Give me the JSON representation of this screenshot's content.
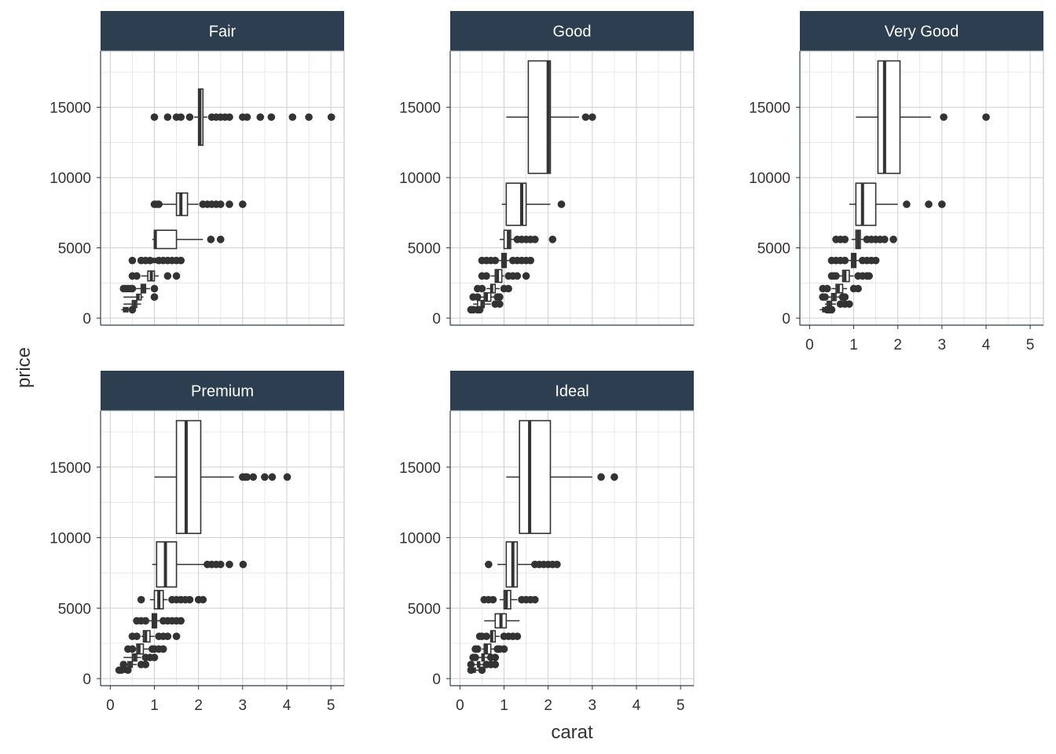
{
  "chart_data": {
    "type": "boxplot",
    "facet_by": "cut",
    "orientation": "horizontal boxes (grouped by price bins)",
    "xlabel": "carat",
    "ylabel": "price",
    "xlim": [
      0,
      5.3
    ],
    "ylim": [
      0,
      19000
    ],
    "x_ticks": [
      0,
      1,
      2,
      3,
      4,
      5
    ],
    "y_ticks": [
      0,
      5000,
      10000,
      15000
    ],
    "x_tick_labels": [
      "0",
      "1",
      "2",
      "3",
      "4",
      "5"
    ],
    "y_tick_labels": [
      "0",
      "5000",
      "10000",
      "15000"
    ],
    "grid": true,
    "colors": {
      "strip": "#2c3e50",
      "box": "#333333",
      "grid": "#d0d0d0",
      "panel_border": "#2c3e50"
    },
    "panels": [
      {
        "name": "Fair",
        "boxes": [
          {
            "y": 14300,
            "h": 4000,
            "whisker_low": 1.9,
            "q1": 2.0,
            "median": 2.03,
            "q3": 2.1,
            "whisker_high": 2.2,
            "outliers": [
              1.0,
              1.3,
              1.5,
              1.6,
              1.8,
              2.3,
              2.4,
              2.5,
              2.6,
              2.7,
              3.0,
              3.1,
              3.4,
              3.65,
              4.13,
              4.5,
              5.01
            ]
          },
          {
            "y": 8100,
            "h": 1600,
            "whisker_low": 1.0,
            "q1": 1.5,
            "median": 1.6,
            "q3": 1.75,
            "whisker_high": 2.0,
            "outliers": [
              1.0,
              1.05,
              1.1,
              2.1,
              2.2,
              2.3,
              2.4,
              2.5,
              2.7,
              3.0
            ]
          },
          {
            "y": 5600,
            "h": 1300,
            "whisker_low": 0.95,
            "q1": 1.0,
            "median": 1.02,
            "q3": 1.5,
            "whisker_high": 2.1,
            "outliers": [
              2.28,
              2.5
            ]
          },
          {
            "y": 4100,
            "h": 300,
            "whisker_low": 0.9,
            "q1": 0.95,
            "median": 1.0,
            "q3": 1.05,
            "whisker_high": 1.1,
            "outliers": [
              0.5,
              0.7,
              0.8,
              0.9,
              1.1,
              1.2,
              1.3,
              1.4,
              1.5,
              1.6
            ]
          },
          {
            "y": 3000,
            "h": 700,
            "whisker_low": 0.7,
            "q1": 0.85,
            "median": 0.93,
            "q3": 1.0,
            "whisker_high": 1.1,
            "outliers": [
              0.5,
              0.6,
              1.3,
              1.5
            ]
          },
          {
            "y": 2100,
            "h": 600,
            "whisker_low": 0.55,
            "q1": 0.7,
            "median": 0.75,
            "q3": 0.8,
            "whisker_high": 0.9,
            "outliers": [
              0.3,
              0.35,
              0.4,
              0.45,
              0.5,
              1.0
            ]
          },
          {
            "y": 1500,
            "h": 400,
            "whisker_low": 0.3,
            "q1": 0.6,
            "median": 0.63,
            "q3": 0.7,
            "whisker_high": 0.75,
            "outliers": [
              1.0
            ]
          },
          {
            "y": 1000,
            "h": 500,
            "whisker_low": 0.3,
            "q1": 0.5,
            "median": 0.55,
            "q3": 0.6,
            "whisker_high": 0.7,
            "outliers": []
          },
          {
            "y": 600,
            "h": 300,
            "whisker_low": 0.25,
            "q1": 0.3,
            "median": 0.35,
            "q3": 0.4,
            "whisker_high": 0.5,
            "outliers": [
              0.5
            ]
          }
        ]
      },
      {
        "name": "Good",
        "boxes": [
          {
            "y": 14300,
            "h": 8000,
            "whisker_low": 1.05,
            "q1": 1.55,
            "median": 2.0,
            "q3": 2.05,
            "whisker_high": 2.7,
            "outliers": [
              2.85,
              3.0
            ]
          },
          {
            "y": 8100,
            "h": 3000,
            "whisker_low": 0.95,
            "q1": 1.05,
            "median": 1.4,
            "q3": 1.5,
            "whisker_high": 2.05,
            "outliers": [
              2.3
            ]
          },
          {
            "y": 5600,
            "h": 1300,
            "whisker_low": 0.9,
            "q1": 1.0,
            "median": 1.1,
            "q3": 1.15,
            "whisker_high": 1.3,
            "outliers": [
              1.3,
              1.4,
              1.5,
              1.6,
              1.7,
              2.1
            ]
          },
          {
            "y": 4100,
            "h": 1000,
            "whisker_low": 0.85,
            "q1": 0.95,
            "median": 1.0,
            "q3": 1.05,
            "whisker_high": 1.15,
            "outliers": [
              0.5,
              0.6,
              0.7,
              0.8,
              1.2,
              1.3,
              1.4,
              1.5,
              1.6
            ]
          },
          {
            "y": 3000,
            "h": 900,
            "whisker_low": 0.7,
            "q1": 0.8,
            "median": 0.85,
            "q3": 0.95,
            "whisker_high": 1.0,
            "outliers": [
              0.5,
              0.6,
              1.1,
              1.2,
              1.3,
              1.5
            ]
          },
          {
            "y": 2100,
            "h": 600,
            "whisker_low": 0.6,
            "q1": 0.7,
            "median": 0.72,
            "q3": 0.8,
            "whisker_high": 0.9,
            "outliers": [
              0.4,
              0.5,
              1.0,
              1.1
            ]
          },
          {
            "y": 1500,
            "h": 600,
            "whisker_low": 0.35,
            "q1": 0.55,
            "median": 0.6,
            "q3": 0.7,
            "whisker_high": 0.8,
            "outliers": [
              0.3,
              0.4,
              0.85,
              0.9
            ]
          },
          {
            "y": 1000,
            "h": 500,
            "whisker_low": 0.3,
            "q1": 0.4,
            "median": 0.5,
            "q3": 0.55,
            "whisker_high": 0.7,
            "outliers": [
              0.8,
              0.9
            ]
          },
          {
            "y": 600,
            "h": 300,
            "whisker_low": 0.23,
            "q1": 0.3,
            "median": 0.32,
            "q3": 0.35,
            "whisker_high": 0.45,
            "outliers": [
              0.25,
              0.3,
              0.4,
              0.45
            ]
          }
        ]
      },
      {
        "name": "Very Good",
        "boxes": [
          {
            "y": 14300,
            "h": 8000,
            "whisker_low": 1.05,
            "q1": 1.55,
            "median": 1.7,
            "q3": 2.05,
            "whisker_high": 2.75,
            "outliers": [
              3.04,
              4.0
            ]
          },
          {
            "y": 8100,
            "h": 3000,
            "whisker_low": 0.9,
            "q1": 1.05,
            "median": 1.2,
            "q3": 1.5,
            "whisker_high": 2.0,
            "outliers": [
              2.2,
              2.7,
              3.0
            ]
          },
          {
            "y": 5600,
            "h": 1300,
            "whisker_low": 0.95,
            "q1": 1.05,
            "median": 1.1,
            "q3": 1.15,
            "whisker_high": 1.3,
            "outliers": [
              0.6,
              0.7,
              0.8,
              1.3,
              1.4,
              1.5,
              1.6,
              1.7,
              1.9
            ]
          },
          {
            "y": 4100,
            "h": 1000,
            "whisker_low": 0.85,
            "q1": 0.95,
            "median": 1.0,
            "q3": 1.05,
            "whisker_high": 1.15,
            "outliers": [
              0.5,
              0.6,
              0.7,
              0.8,
              1.2,
              1.3,
              1.4,
              1.5
            ]
          },
          {
            "y": 3000,
            "h": 800,
            "whisker_low": 0.65,
            "q1": 0.75,
            "median": 0.8,
            "q3": 0.9,
            "whisker_high": 1.0,
            "outliers": [
              0.5,
              0.55,
              0.6,
              1.1,
              1.2,
              1.3,
              1.35
            ]
          },
          {
            "y": 2100,
            "h": 600,
            "whisker_low": 0.5,
            "q1": 0.6,
            "median": 0.65,
            "q3": 0.75,
            "whisker_high": 0.85,
            "outliers": [
              0.3,
              0.4,
              1.0,
              1.1
            ]
          },
          {
            "y": 1500,
            "h": 500,
            "whisker_low": 0.4,
            "q1": 0.5,
            "median": 0.55,
            "q3": 0.6,
            "whisker_high": 0.7,
            "outliers": [
              0.3,
              0.35,
              0.75,
              0.8
            ]
          },
          {
            "y": 1000,
            "h": 400,
            "whisker_low": 0.35,
            "q1": 0.4,
            "median": 0.45,
            "q3": 0.5,
            "whisker_high": 0.6,
            "outliers": [
              0.7,
              0.8,
              0.9
            ]
          },
          {
            "y": 600,
            "h": 300,
            "whisker_low": 0.23,
            "q1": 0.3,
            "median": 0.32,
            "q3": 0.35,
            "whisker_high": 0.45,
            "outliers": [
              0.4,
              0.45,
              0.5
            ]
          }
        ]
      },
      {
        "name": "Premium",
        "boxes": [
          {
            "y": 14300,
            "h": 8000,
            "whisker_low": 1.0,
            "q1": 1.5,
            "median": 1.72,
            "q3": 2.05,
            "whisker_high": 2.8,
            "outliers": [
              3.0,
              3.05,
              3.1,
              3.24,
              3.5,
              3.67,
              4.01
            ]
          },
          {
            "y": 8100,
            "h": 3200,
            "whisker_low": 0.95,
            "q1": 1.05,
            "median": 1.25,
            "q3": 1.5,
            "whisker_high": 2.2,
            "outliers": [
              2.2,
              2.3,
              2.4,
              2.5,
              2.7,
              3.01
            ]
          },
          {
            "y": 5600,
            "h": 1300,
            "whisker_low": 0.9,
            "q1": 1.0,
            "median": 1.1,
            "q3": 1.2,
            "whisker_high": 1.3,
            "outliers": [
              0.7,
              1.4,
              1.5,
              1.6,
              1.7,
              1.8,
              2.0,
              2.1
            ]
          },
          {
            "y": 4100,
            "h": 1000,
            "whisker_low": 0.85,
            "q1": 0.95,
            "median": 1.0,
            "q3": 1.05,
            "whisker_high": 1.15,
            "outliers": [
              0.6,
              0.7,
              0.8,
              1.2,
              1.3,
              1.4,
              1.5,
              1.6
            ]
          },
          {
            "y": 3000,
            "h": 800,
            "whisker_low": 0.7,
            "q1": 0.75,
            "median": 0.8,
            "q3": 0.9,
            "whisker_high": 1.0,
            "outliers": [
              0.5,
              0.6,
              1.1,
              1.2,
              1.3,
              1.5
            ]
          },
          {
            "y": 2100,
            "h": 700,
            "whisker_low": 0.55,
            "q1": 0.6,
            "median": 0.65,
            "q3": 0.75,
            "whisker_high": 0.9,
            "outliers": [
              0.4,
              0.5,
              0.95,
              1.0,
              1.1,
              1.2
            ]
          },
          {
            "y": 1500,
            "h": 500,
            "whisker_low": 0.3,
            "q1": 0.5,
            "median": 0.55,
            "q3": 0.6,
            "whisker_high": 0.7,
            "outliers": [
              0.8,
              0.9,
              1.0
            ]
          },
          {
            "y": 1000,
            "h": 400,
            "whisker_low": 0.35,
            "q1": 0.4,
            "median": 0.45,
            "q3": 0.5,
            "whisker_high": 0.6,
            "outliers": [
              0.3,
              0.7,
              0.8
            ]
          },
          {
            "y": 600,
            "h": 300,
            "whisker_low": 0.2,
            "q1": 0.3,
            "median": 0.32,
            "q3": 0.35,
            "whisker_high": 0.45,
            "outliers": [
              0.2,
              0.25,
              0.4
            ]
          }
        ]
      },
      {
        "name": "Ideal",
        "boxes": [
          {
            "y": 14300,
            "h": 8000,
            "whisker_low": 1.05,
            "q1": 1.35,
            "median": 1.58,
            "q3": 2.05,
            "whisker_high": 3.0,
            "outliers": [
              3.2,
              3.5
            ]
          },
          {
            "y": 8100,
            "h": 3200,
            "whisker_low": 0.85,
            "q1": 1.05,
            "median": 1.2,
            "q3": 1.3,
            "whisker_high": 1.65,
            "outliers": [
              0.65,
              1.7,
              1.8,
              1.9,
              2.0,
              2.1,
              2.2
            ]
          },
          {
            "y": 5600,
            "h": 1300,
            "whisker_low": 0.9,
            "q1": 1.0,
            "median": 1.05,
            "q3": 1.15,
            "whisker_high": 1.3,
            "outliers": [
              0.55,
              0.65,
              0.75,
              1.4,
              1.5,
              1.6,
              1.7
            ]
          },
          {
            "y": 4100,
            "h": 1000,
            "whisker_low": 0.55,
            "q1": 0.8,
            "median": 0.93,
            "q3": 1.05,
            "whisker_high": 1.35,
            "outliers": []
          },
          {
            "y": 3000,
            "h": 800,
            "whisker_low": 0.65,
            "q1": 0.7,
            "median": 0.72,
            "q3": 0.8,
            "whisker_high": 0.9,
            "outliers": [
              0.45,
              0.5,
              0.6,
              1.0,
              1.1,
              1.2,
              1.3
            ]
          },
          {
            "y": 2100,
            "h": 700,
            "whisker_low": 0.5,
            "q1": 0.55,
            "median": 0.6,
            "q3": 0.7,
            "whisker_high": 0.8,
            "outliers": [
              0.35,
              0.4,
              0.85,
              0.9,
              1.0
            ]
          },
          {
            "y": 1500,
            "h": 500,
            "whisker_low": 0.4,
            "q1": 0.5,
            "median": 0.52,
            "q3": 0.55,
            "whisker_high": 0.65,
            "outliers": [
              0.3,
              0.35,
              0.7,
              0.8
            ]
          },
          {
            "y": 1000,
            "h": 400,
            "whisker_low": 0.3,
            "q1": 0.4,
            "median": 0.42,
            "q3": 0.45,
            "whisker_high": 0.55,
            "outliers": [
              0.25,
              0.6,
              0.7,
              0.8
            ]
          },
          {
            "y": 600,
            "h": 300,
            "whisker_low": 0.2,
            "q1": 0.3,
            "median": 0.32,
            "q3": 0.35,
            "whisker_high": 0.45,
            "outliers": [
              0.25,
              0.5
            ]
          }
        ]
      }
    ]
  }
}
